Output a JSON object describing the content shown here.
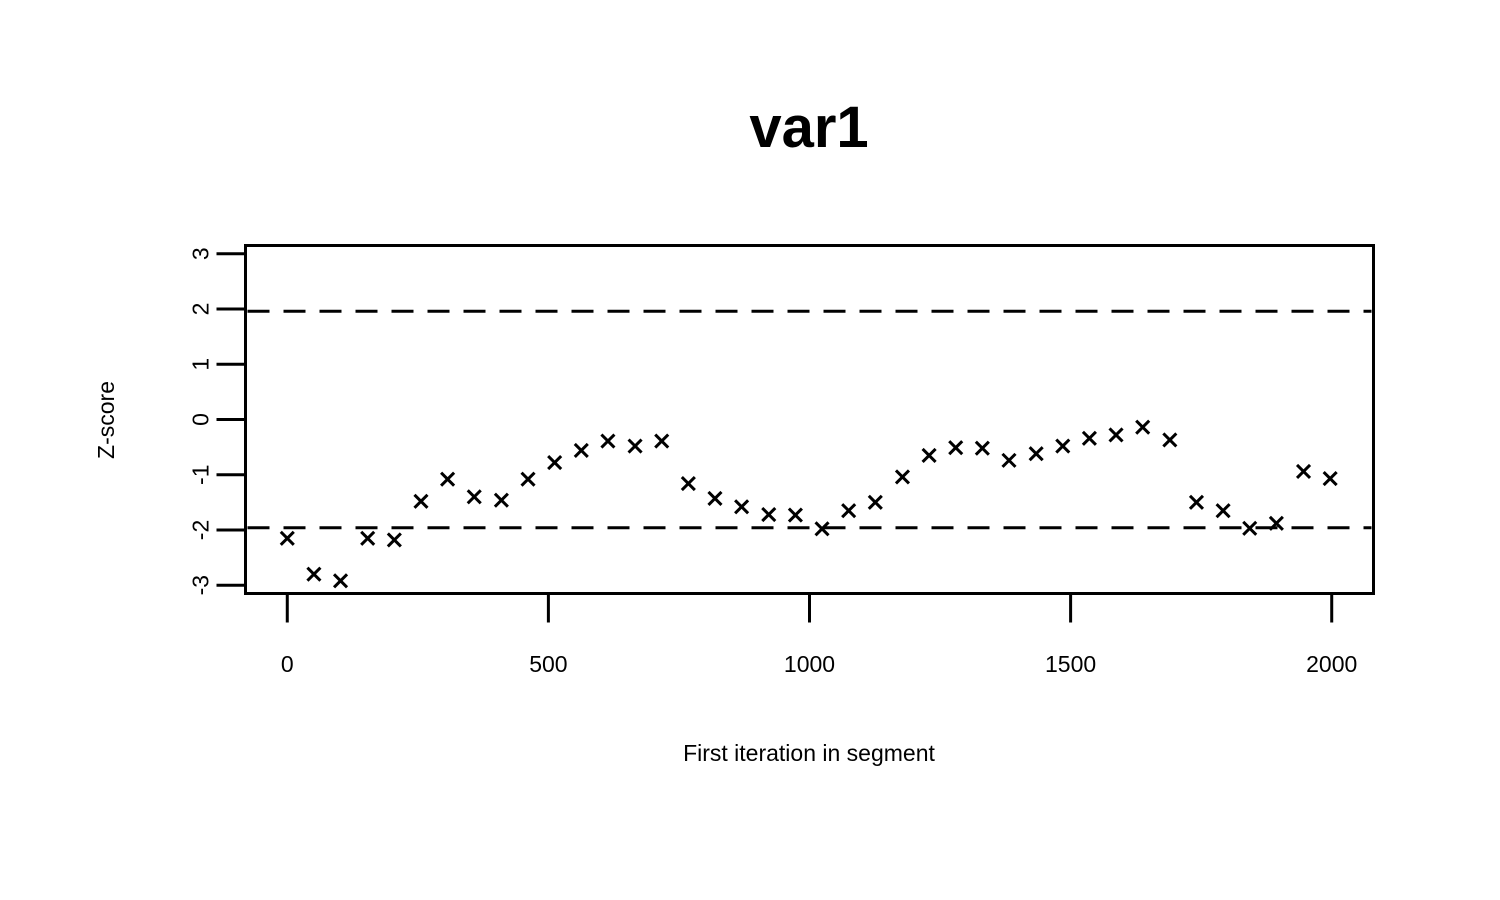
{
  "chart_data": {
    "type": "scatter",
    "title": "var1",
    "xlabel": "First iteration in segment",
    "ylabel": "Z-score",
    "xlim": [
      -80,
      2080
    ],
    "ylim": [
      -3.15,
      3.15
    ],
    "x_ticks": [
      0,
      500,
      1000,
      1500,
      2000
    ],
    "x_tick_labels": [
      "0",
      "500",
      "1000",
      "1500",
      "2000"
    ],
    "y_ticks": [
      -3,
      -2,
      -1,
      0,
      1,
      2,
      3
    ],
    "y_tick_labels": [
      "-3",
      "-2",
      "-1",
      "0",
      "1",
      "2",
      "3"
    ],
    "reference_lines": [
      1.96,
      -1.96
    ],
    "marker": "x",
    "grid": false,
    "series": [
      {
        "x": [
          0,
          51,
          102,
          154,
          205,
          256,
          307,
          358,
          410,
          461,
          512,
          563,
          614,
          666,
          717,
          768,
          819,
          870,
          922,
          973,
          1024,
          1075,
          1126,
          1178,
          1229,
          1280,
          1331,
          1382,
          1434,
          1485,
          1536,
          1587,
          1638,
          1690,
          1741,
          1792,
          1843,
          1894,
          1946,
          1997
        ],
        "y": [
          -2.15,
          -2.8,
          -2.92,
          -2.15,
          -2.18,
          -1.48,
          -1.08,
          -1.4,
          -1.46,
          -1.08,
          -0.78,
          -0.56,
          -0.39,
          -0.48,
          -0.39,
          -1.16,
          -1.43,
          -1.58,
          -1.72,
          -1.73,
          -1.98,
          -1.65,
          -1.5,
          -1.04,
          -0.65,
          -0.51,
          -0.52,
          -0.74,
          -0.62,
          -0.48,
          -0.34,
          -0.28,
          -0.14,
          -0.37,
          -1.5,
          -1.65,
          -1.97,
          -1.88,
          -0.94,
          -1.07
        ]
      }
    ]
  }
}
